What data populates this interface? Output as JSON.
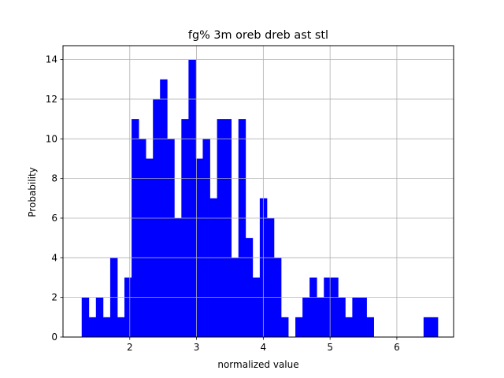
{
  "chart_data": {
    "type": "bar",
    "title": "fg% 3m oreb dreb ast stl",
    "xlabel": "normalized value",
    "ylabel": "Probability",
    "xlim": [
      1.0,
      6.85
    ],
    "ylim": [
      0,
      14.7
    ],
    "xticks": [
      2,
      3,
      4,
      5,
      6
    ],
    "yticks": [
      0,
      2,
      4,
      6,
      8,
      10,
      12,
      14
    ],
    "grid": true,
    "bar_color": "#0000ff",
    "bin_width": 0.1067,
    "bins_start": [
      1.28,
      1.387,
      1.493,
      1.6,
      1.707,
      1.813,
      1.92,
      2.027,
      2.133,
      2.24,
      2.347,
      2.453,
      2.56,
      2.667,
      2.773,
      2.88,
      2.987,
      3.093,
      3.2,
      3.307,
      3.413,
      3.52,
      3.627,
      3.733,
      3.84,
      3.947,
      4.053,
      4.16,
      4.267,
      4.373,
      4.48,
      4.587,
      4.693,
      4.8,
      4.907,
      5.013,
      5.12,
      5.227,
      5.333,
      5.44,
      5.547,
      5.653,
      5.76,
      5.867,
      5.973,
      6.08,
      6.187,
      6.293,
      6.4,
      6.507
    ],
    "values": [
      2,
      1,
      2,
      1,
      4,
      1,
      3,
      11,
      10,
      9,
      12,
      13,
      10,
      6,
      11,
      14,
      9,
      10,
      7,
      11,
      11,
      4,
      11,
      5,
      3,
      7,
      6,
      4,
      1,
      0,
      1,
      2,
      3,
      2,
      3,
      3,
      2,
      1,
      2,
      2,
      1,
      0,
      0,
      0,
      0,
      0,
      0,
      0,
      1,
      1
    ]
  }
}
